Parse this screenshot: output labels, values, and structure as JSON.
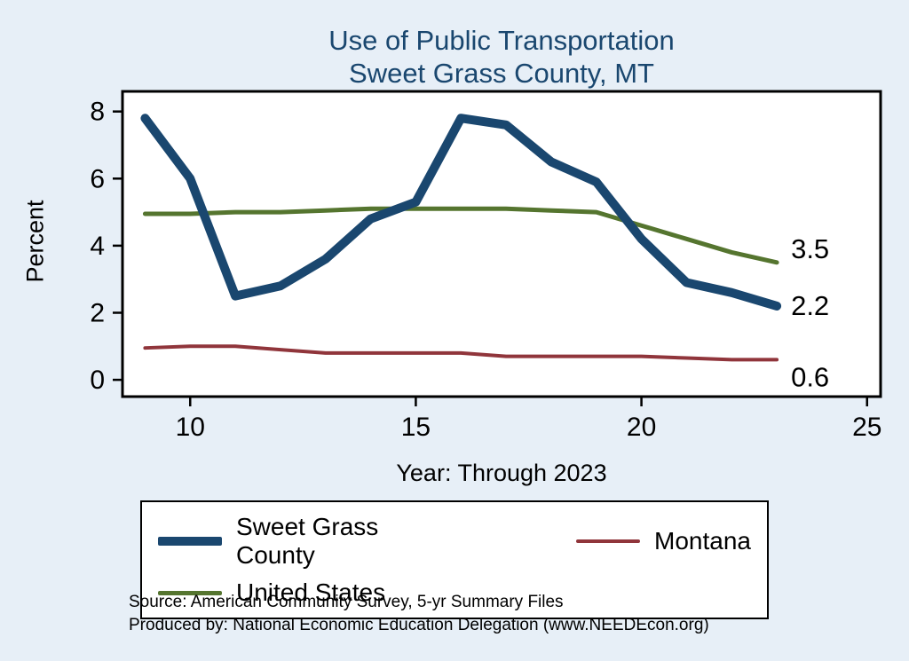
{
  "title": {
    "line1": "Use of Public Transportation",
    "line2": "Sweet Grass County, MT"
  },
  "chart_data": {
    "type": "line",
    "x": [
      9,
      10,
      11,
      12,
      13,
      14,
      15,
      16,
      17,
      18,
      19,
      20,
      21,
      22,
      23
    ],
    "series": [
      {
        "name": "Sweet Grass County",
        "color": "#1a476f",
        "width": 10,
        "values": [
          7.8,
          6.0,
          2.5,
          2.8,
          3.6,
          4.8,
          5.3,
          7.8,
          7.6,
          6.5,
          5.9,
          4.2,
          2.9,
          2.6,
          2.2
        ],
        "end_label": "2.2"
      },
      {
        "name": "Montana",
        "color": "#90353b",
        "width": 4,
        "values": [
          0.95,
          1.0,
          1.0,
          0.9,
          0.8,
          0.8,
          0.8,
          0.8,
          0.7,
          0.7,
          0.7,
          0.7,
          0.65,
          0.6,
          0.6
        ],
        "end_label": "0.6"
      },
      {
        "name": "United States",
        "color": "#55752f",
        "width": 5,
        "values": [
          4.95,
          4.95,
          5.0,
          5.0,
          5.05,
          5.1,
          5.1,
          5.1,
          5.1,
          5.05,
          5.0,
          4.6,
          4.2,
          3.8,
          3.5
        ],
        "end_label": "3.5"
      }
    ],
    "xlabel": "Year: Through 2023",
    "ylabel": "Percent",
    "x_ticks": [
      "10",
      "15",
      "20",
      "25"
    ],
    "x_tick_values": [
      10,
      15,
      20,
      25
    ],
    "y_ticks": [
      "0",
      "2",
      "4",
      "6",
      "8"
    ],
    "y_tick_values": [
      0,
      2,
      4,
      6,
      8
    ],
    "xlim": [
      8.5,
      25.3
    ],
    "ylim": [
      -0.5,
      8.6
    ],
    "grid": false,
    "legend_position": "bottom",
    "plot_bg": "#ffffff",
    "page_bg": "#e7eff7"
  },
  "footer": {
    "line1": "Source: American Community Survey, 5-yr Summary Files",
    "line2": "Produced by: National Economic Education Delegation (www.NEEDEcon.org)"
  }
}
